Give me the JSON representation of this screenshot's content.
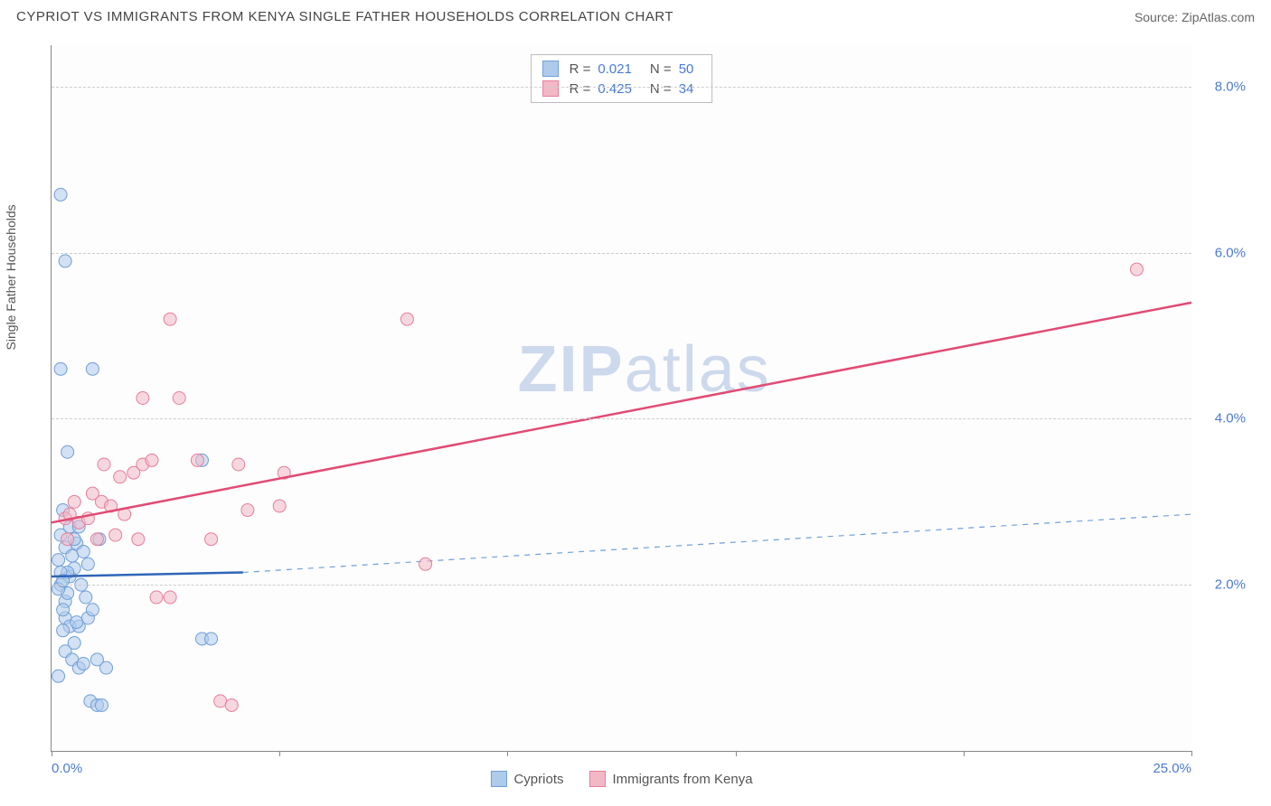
{
  "title": "CYPRIOT VS IMMIGRANTS FROM KENYA SINGLE FATHER HOUSEHOLDS CORRELATION CHART",
  "source": "Source: ZipAtlas.com",
  "ylabel": "Single Father Households",
  "watermark_a": "ZIP",
  "watermark_b": "atlas",
  "chart": {
    "type": "scatter",
    "background_color": "#fdfdfd",
    "grid_color": "#cccccc",
    "axis_color": "#888888",
    "label_color": "#4a7bd0",
    "xlim": [
      0,
      25
    ],
    "ylim": [
      0,
      8.5
    ],
    "yticks": [
      2.0,
      4.0,
      6.0,
      8.0
    ],
    "ytick_labels": [
      "2.0%",
      "4.0%",
      "6.0%",
      "8.0%"
    ],
    "xticks": [
      0,
      5,
      10,
      15,
      20,
      25
    ],
    "xtick_labels_shown": {
      "0": "0.0%",
      "25": "25.0%"
    },
    "series": [
      {
        "name": "Cypriots",
        "fill": "#aecbeb",
        "stroke": "#6f9fd8",
        "fill_opacity": 0.55,
        "marker_r": 7,
        "R": "0.021",
        "N": "50",
        "trend": {
          "x1": 0,
          "y1": 2.1,
          "x2": 4.2,
          "y2": 2.15,
          "solid_stroke": "#2f66b8",
          "solid_width": 2.5,
          "dash_x2": 25,
          "dash_y2": 2.85,
          "dash_stroke": "#6f9fd8",
          "dash_width": 1.2
        },
        "points": [
          [
            0.2,
            2.0
          ],
          [
            0.3,
            1.8
          ],
          [
            0.3,
            1.6
          ],
          [
            0.4,
            1.5
          ],
          [
            0.25,
            1.7
          ],
          [
            0.35,
            1.9
          ],
          [
            0.4,
            2.1
          ],
          [
            0.5,
            2.2
          ],
          [
            0.15,
            2.3
          ],
          [
            0.3,
            2.45
          ],
          [
            0.2,
            2.6
          ],
          [
            0.4,
            2.7
          ],
          [
            0.55,
            2.5
          ],
          [
            0.25,
            2.9
          ],
          [
            0.3,
            1.2
          ],
          [
            0.45,
            1.1
          ],
          [
            0.6,
            1.0
          ],
          [
            0.7,
            1.05
          ],
          [
            0.85,
            0.6
          ],
          [
            1.0,
            0.55
          ],
          [
            1.1,
            0.55
          ],
          [
            1.0,
            1.1
          ],
          [
            1.2,
            1.0
          ],
          [
            0.15,
            0.9
          ],
          [
            0.6,
            1.5
          ],
          [
            0.8,
            1.6
          ],
          [
            0.9,
            1.7
          ],
          [
            0.35,
            3.6
          ],
          [
            0.9,
            4.6
          ],
          [
            0.2,
            4.6
          ],
          [
            0.3,
            5.9
          ],
          [
            0.2,
            6.7
          ],
          [
            3.3,
            1.35
          ],
          [
            3.5,
            1.35
          ],
          [
            3.3,
            3.5
          ],
          [
            0.5,
            1.3
          ],
          [
            0.55,
            1.55
          ],
          [
            0.75,
            1.85
          ],
          [
            0.45,
            2.35
          ],
          [
            0.65,
            2.0
          ],
          [
            0.8,
            2.25
          ],
          [
            0.25,
            1.45
          ],
          [
            0.15,
            1.95
          ],
          [
            0.35,
            2.15
          ],
          [
            0.5,
            2.55
          ],
          [
            0.7,
            2.4
          ],
          [
            1.05,
            2.55
          ],
          [
            0.2,
            2.15
          ],
          [
            0.6,
            2.7
          ],
          [
            0.25,
            2.05
          ]
        ]
      },
      {
        "name": "Immigrants from Kenya",
        "fill": "#f3b8c6",
        "stroke": "#e57f9a",
        "fill_opacity": 0.55,
        "marker_r": 7,
        "R": "0.425",
        "N": "34",
        "trend": {
          "x1": 0,
          "y1": 2.75,
          "x2": 25,
          "y2": 5.4,
          "solid_stroke": "#e24a74",
          "solid_width": 2.5
        },
        "points": [
          [
            0.3,
            2.8
          ],
          [
            0.4,
            2.85
          ],
          [
            0.6,
            2.75
          ],
          [
            0.8,
            2.8
          ],
          [
            0.5,
            3.0
          ],
          [
            0.9,
            3.1
          ],
          [
            1.1,
            3.0
          ],
          [
            1.3,
            2.95
          ],
          [
            1.0,
            2.55
          ],
          [
            1.4,
            2.6
          ],
          [
            1.6,
            2.85
          ],
          [
            1.5,
            3.3
          ],
          [
            1.8,
            3.35
          ],
          [
            2.0,
            3.45
          ],
          [
            2.2,
            3.5
          ],
          [
            1.9,
            2.55
          ],
          [
            2.3,
            1.85
          ],
          [
            2.6,
            1.85
          ],
          [
            2.0,
            4.25
          ],
          [
            2.8,
            4.25
          ],
          [
            2.6,
            5.2
          ],
          [
            3.5,
            2.55
          ],
          [
            3.7,
            0.6
          ],
          [
            3.95,
            0.55
          ],
          [
            4.1,
            3.45
          ],
          [
            4.3,
            2.9
          ],
          [
            5.0,
            2.95
          ],
          [
            5.1,
            3.35
          ],
          [
            7.8,
            5.2
          ],
          [
            8.2,
            2.25
          ],
          [
            3.2,
            3.5
          ],
          [
            23.8,
            5.8
          ],
          [
            1.15,
            3.45
          ],
          [
            0.35,
            2.55
          ]
        ]
      }
    ],
    "stats_box": {
      "rows": [
        {
          "swatch_fill": "#aecbeb",
          "swatch_stroke": "#6f9fd8",
          "r_label": "R  =",
          "r_val": "0.021",
          "n_label": "N  =",
          "n_val": "50"
        },
        {
          "swatch_fill": "#f3b8c6",
          "swatch_stroke": "#e57f9a",
          "r_label": "R  =",
          "r_val": "0.425",
          "n_label": "N  =",
          "n_val": "34"
        }
      ]
    },
    "bottom_legend": [
      {
        "swatch_fill": "#aecbeb",
        "swatch_stroke": "#6f9fd8",
        "label": "Cypriots"
      },
      {
        "swatch_fill": "#f3b8c6",
        "swatch_stroke": "#e57f9a",
        "label": "Immigrants from Kenya"
      }
    ]
  }
}
